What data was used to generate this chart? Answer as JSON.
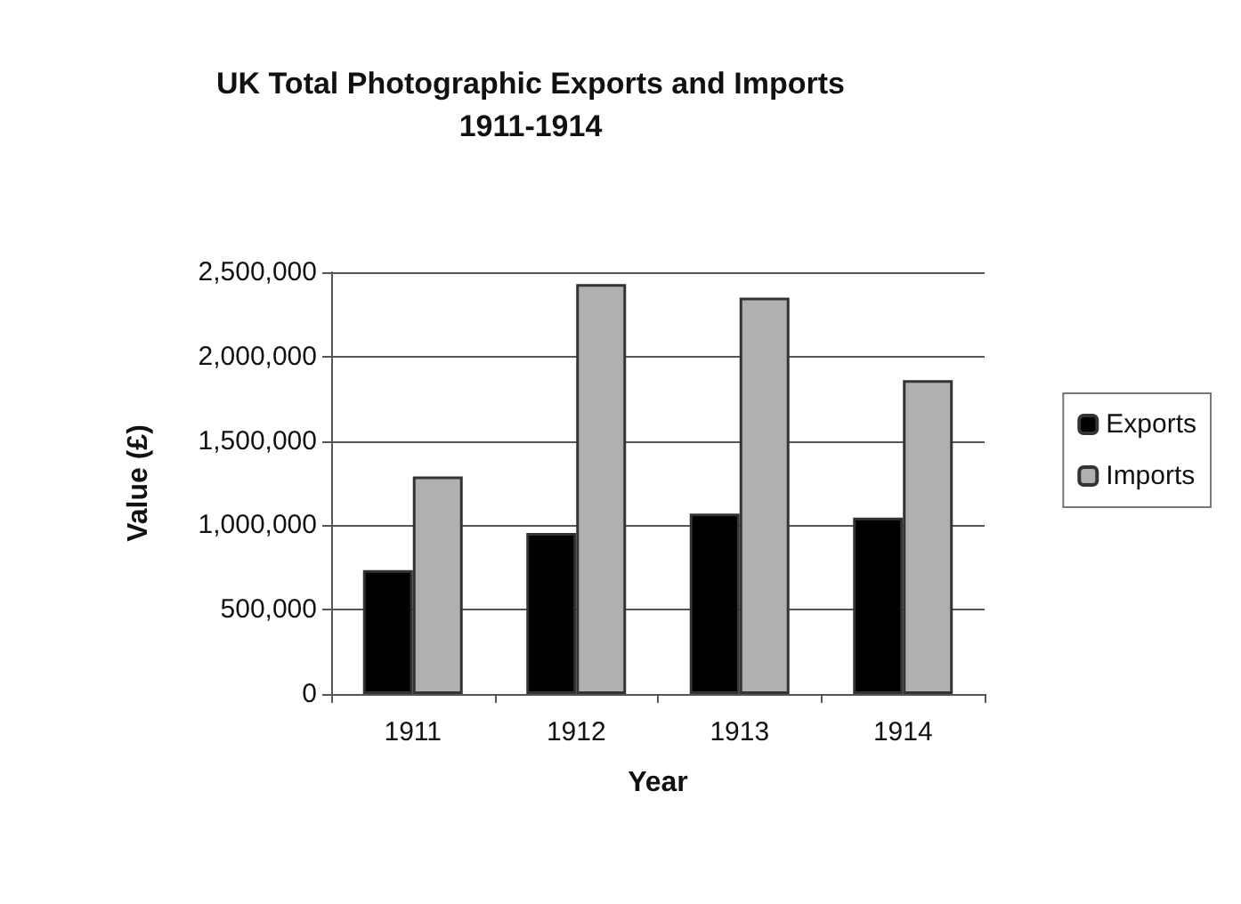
{
  "chart_data": {
    "type": "bar",
    "title": "UK Total Photographic Exports and Imports\n1911-1914",
    "xlabel": "Year",
    "ylabel": "Value (£)",
    "categories": [
      "1911",
      "1912",
      "1913",
      "1914"
    ],
    "series": [
      {
        "name": "Exports",
        "color": "#000000",
        "values": [
          735000,
          955000,
          1070000,
          1045000
        ]
      },
      {
        "name": "Imports",
        "color": "#b0b0b0",
        "values": [
          1290000,
          2430000,
          2350000,
          1860000
        ]
      }
    ],
    "ylim": [
      0,
      2500000
    ],
    "yticks": [
      {
        "value": 0,
        "label": "0"
      },
      {
        "value": 500000,
        "label": "500,000"
      },
      {
        "value": 1000000,
        "label": "1,000,000"
      },
      {
        "value": 1500000,
        "label": "1,500,000"
      },
      {
        "value": 2000000,
        "label": "2,000,000"
      },
      {
        "value": 2500000,
        "label": "2,500,000"
      }
    ],
    "grid": "y",
    "legend": "right"
  }
}
